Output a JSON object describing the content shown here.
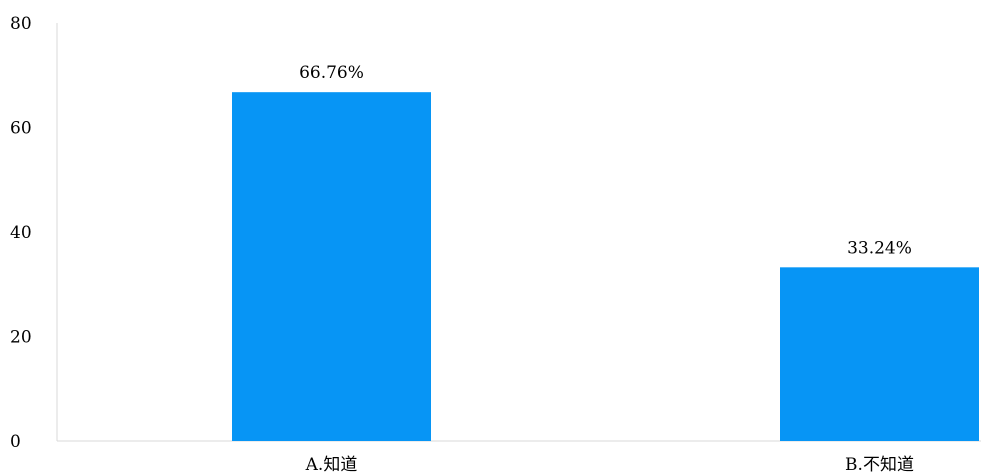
{
  "chart_data": {
    "type": "bar",
    "categories": [
      "A.知道",
      "B.不知道"
    ],
    "values": [
      66.76,
      33.24
    ],
    "data_labels": [
      "66.76%",
      "33.24%"
    ],
    "ylim": [
      0,
      80
    ],
    "yticks": [
      "0",
      "20",
      "40",
      "60",
      "80"
    ],
    "grid": false,
    "legend": "none",
    "bar_color": "#0795f5",
    "axis_color": "#d9d9d9"
  }
}
